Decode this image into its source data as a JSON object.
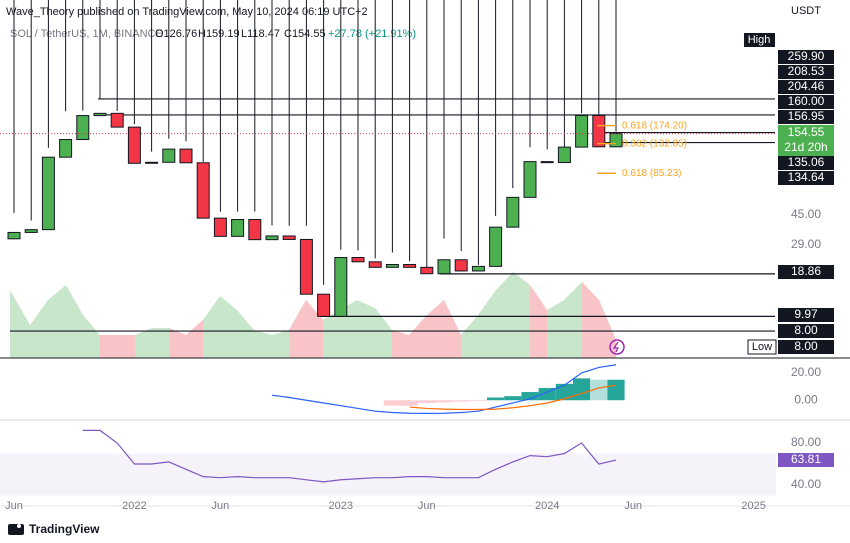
{
  "header": {
    "published": "Wave_Theory published on TradingView.com, May 10, 2024 06:19 UTC+2",
    "symbol": "SOL / TetherUS, 1M, BINANCE",
    "ohlc": [
      "O126.76",
      "H159.19",
      "L118.47",
      "C154.55"
    ],
    "change": "+27.78 (+21.91%)",
    "brand": "TradingView"
  },
  "chart_data": {
    "type": "candlestick",
    "log": true,
    "grid": false,
    "currency": "USDT",
    "categories": [
      "Jun",
      null,
      null,
      null,
      null,
      null,
      null,
      "2022",
      null,
      null,
      null,
      null,
      "Jun",
      null,
      null,
      null,
      null,
      null,
      null,
      "2023",
      null,
      null,
      null,
      null,
      "Jun",
      null,
      null,
      null,
      null,
      null,
      null,
      "2024",
      null,
      null,
      null,
      null,
      "Jun",
      null,
      null,
      null,
      null,
      null,
      null,
      "2025",
      null
    ],
    "open": [
      31.9,
      35.1,
      36.6,
      108.5,
      141.4,
      202.5,
      209.4,
      170.3,
      99.0,
      100.5,
      122.5,
      99.8,
      43.5,
      33.1,
      42.6,
      31.5,
      33.3,
      31.6,
      13.9,
      9.97,
      24.1,
      22.6,
      20.8,
      21.7,
      20.8,
      18.9,
      23.3,
      19.7,
      21.1,
      38.0,
      59.4,
      101.5,
      100.1,
      126.2,
      202.8,
      126.76,
      null,
      null,
      null,
      null,
      null,
      null,
      null,
      null,
      null
    ],
    "high": [
      47.0,
      42.0,
      125.0,
      216.0,
      218.0,
      259.9,
      217.0,
      178.0,
      118.0,
      143.0,
      138.0,
      101.0,
      48.0,
      48.0,
      48.0,
      39.0,
      38.8,
      38.8,
      16.0,
      27.1,
      26.8,
      23.8,
      26.0,
      22.8,
      20.8,
      32.0,
      26.5,
      21.6,
      45.0,
      68.2,
      126.0,
      122.0,
      126.0,
      210.0,
      204.5,
      159.19,
      null,
      null,
      null,
      null,
      null,
      null,
      null,
      null,
      null
    ],
    "low": {
      "value": 8,
      "label": "8.00"
    },
    "close": [
      35.1,
      36.6,
      108.5,
      141.4,
      202.5,
      209.4,
      170.3,
      99.0,
      100.5,
      122.5,
      99.8,
      43.5,
      33.1,
      42.6,
      31.5,
      33.3,
      31.6,
      13.9,
      9.97,
      24.1,
      22.6,
      20.8,
      21.7,
      20.8,
      18.9,
      23.3,
      19.7,
      21.1,
      38.0,
      59.4,
      101.5,
      100.1,
      126.2,
      202.8,
      126.77,
      154.55,
      null,
      null,
      null,
      null,
      null,
      null,
      null,
      null,
      null
    ],
    "up_color": "#4caf50",
    "down_color": "#f23645",
    "ylim": [
      5.34,
      1146
    ],
    "yticks": [
      {
        "value": 45,
        "label": "45.00"
      },
      {
        "value": 29,
        "label": "29.00"
      }
    ],
    "levels": [
      {
        "value": 259.9,
        "label": "259.90"
      },
      {
        "value": 208.53,
        "label": "208.53"
      },
      {
        "value": 204.46,
        "label": "204.46"
      },
      {
        "value": 160,
        "label": "160.00"
      },
      {
        "value": 156.95,
        "label": "156.95"
      },
      {
        "value": 135.06,
        "label": "135.06"
      },
      {
        "value": 134.64,
        "label": "134.64"
      },
      {
        "value": 18.86,
        "label": "18.86"
      },
      {
        "value": 9.97,
        "label": "9.97"
      },
      {
        "value": 8,
        "label": "8.00"
      }
    ],
    "high_label": "High",
    "low_label": "Low",
    "last": {
      "value": 154.55,
      "label": "154.55",
      "countdown": "21d 20h"
    },
    "fib": [
      {
        "value": 174.2,
        "text": "0.618 (174.20)"
      },
      {
        "value": 132.85,
        "text": "0.382 (132.85)"
      },
      {
        "value": 85.23,
        "text": "0.618 (85.23)"
      }
    ],
    "fib_color": "#f5a623",
    "macd": {
      "ylim": [
        -13,
        28
      ],
      "yticks": [
        {
          "value": 20,
          "label": "20.00"
        },
        {
          "value": 0,
          "label": "0.00"
        }
      ],
      "histogram": [
        null,
        null,
        null,
        null,
        null,
        null,
        null,
        null,
        null,
        null,
        null,
        null,
        null,
        null,
        null,
        null,
        null,
        null,
        null,
        null,
        null,
        null,
        -4,
        -4,
        -2,
        -1.5,
        -1,
        -0.5,
        2,
        3,
        6,
        9,
        12,
        16,
        15,
        15,
        null,
        null,
        null,
        null,
        null,
        null,
        null,
        null,
        null
      ],
      "macd": [
        null,
        null,
        null,
        null,
        null,
        null,
        null,
        null,
        null,
        null,
        null,
        null,
        null,
        null,
        null,
        3.7,
        2,
        0,
        -2,
        -4,
        -6,
        -8,
        -9,
        -9.5,
        -9.6,
        -9.5,
        -9,
        -8,
        -5,
        -2,
        1,
        6,
        11,
        20,
        24,
        26,
        null,
        null,
        null,
        null,
        null,
        null,
        null,
        null,
        null
      ],
      "signal": [
        null,
        null,
        null,
        null,
        null,
        null,
        null,
        null,
        null,
        null,
        null,
        null,
        null,
        null,
        null,
        null,
        null,
        null,
        null,
        null,
        null,
        null,
        null,
        -5,
        -6,
        -6.5,
        -6.8,
        -6.8,
        -6.5,
        -5.5,
        -4,
        -2,
        1,
        5,
        9,
        11,
        null,
        null,
        null,
        null,
        null,
        null,
        null,
        null,
        null
      ],
      "macd_color": "#2962ff",
      "signal_color": "#ff6d00",
      "hist_colors": [
        "#26a69a",
        "#b2dfdb",
        "#ff5252",
        "#ffcdd2"
      ]
    },
    "rsi": {
      "ylim": [
        21,
        100
      ],
      "yticks": [
        {
          "value": 80,
          "label": "80.00"
        },
        {
          "value": 40,
          "label": "40.00"
        }
      ],
      "band": [
        30,
        70
      ],
      "color": "#7e57c2",
      "values": [
        null,
        null,
        null,
        null,
        92,
        92,
        80,
        60,
        60,
        62,
        55,
        48,
        47,
        48,
        47,
        47,
        47,
        45,
        43,
        45,
        46,
        47,
        47,
        48,
        48,
        47,
        47,
        47,
        55,
        62,
        68,
        67,
        70,
        80,
        60,
        63.81,
        null,
        null,
        null,
        null,
        null,
        null,
        null,
        null,
        null
      ],
      "value_labels": [
        null,
        null,
        null,
        null,
        null,
        null,
        null,
        null,
        null,
        null,
        null,
        null,
        null,
        null,
        null,
        null,
        null,
        null,
        null,
        null,
        null,
        null,
        null,
        null,
        null,
        null,
        null,
        null,
        null,
        null,
        null,
        null,
        null,
        null,
        null,
        "63.81",
        null,
        null,
        null,
        null,
        null,
        null,
        null,
        null,
        null
      ]
    }
  }
}
